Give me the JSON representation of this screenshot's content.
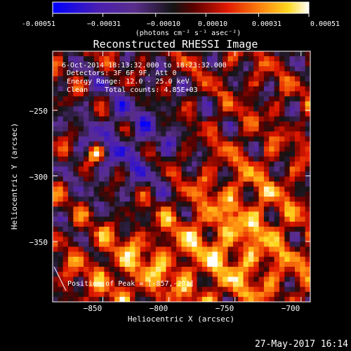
{
  "chart_data": {
    "type": "heatmap",
    "title": "Reconstructed RHESSI Image",
    "xlabel": "Heliocentric X (arcsec)",
    "ylabel": "Heliocentric Y (arcsec)",
    "xlim": [
      -888,
      -693
    ],
    "ylim": [
      -396,
      -205
    ],
    "x_ticks": [
      -850,
      -800,
      -750,
      -700
    ],
    "y_ticks": [
      -250,
      -300,
      -350
    ],
    "x_tick_labels": [
      "−850",
      "−800",
      "−750",
      "−700"
    ],
    "y_tick_labels": [
      "−250",
      "−300",
      "−350"
    ],
    "colorbar": {
      "min": -0.00051,
      "max": 0.00051,
      "ticks": [
        -0.00051,
        -0.00031,
        -0.0001,
        0.0001,
        0.00031,
        0.00051
      ],
      "tick_labels": [
        "-0.00051",
        "−0.00031",
        "−0.00010",
        "0.00010",
        "0.00031",
        "0.00051"
      ],
      "unit_label": "(photons cm⁻² s⁻¹ asec⁻²)",
      "colormap": "rainbow-blue-purple-black-red-orange-yellow-white"
    },
    "annotations": {
      "line1": "6-Oct-2014 18:13:32.000 to 18:23:32.000",
      "line2": "Detectors: 3F 6F 9F, Att 0",
      "line3": "Energy Range: 12.0 - 25.0 keV",
      "line4": "Clean    Total counts: 4.85E+03",
      "peak": "Position of Peak = [-857,-281]"
    },
    "peak_position": [
      -857,
      -281
    ],
    "total_counts": 4850,
    "grid": false
  },
  "footer": {
    "timestamp": "27-May-2017 16:14"
  }
}
